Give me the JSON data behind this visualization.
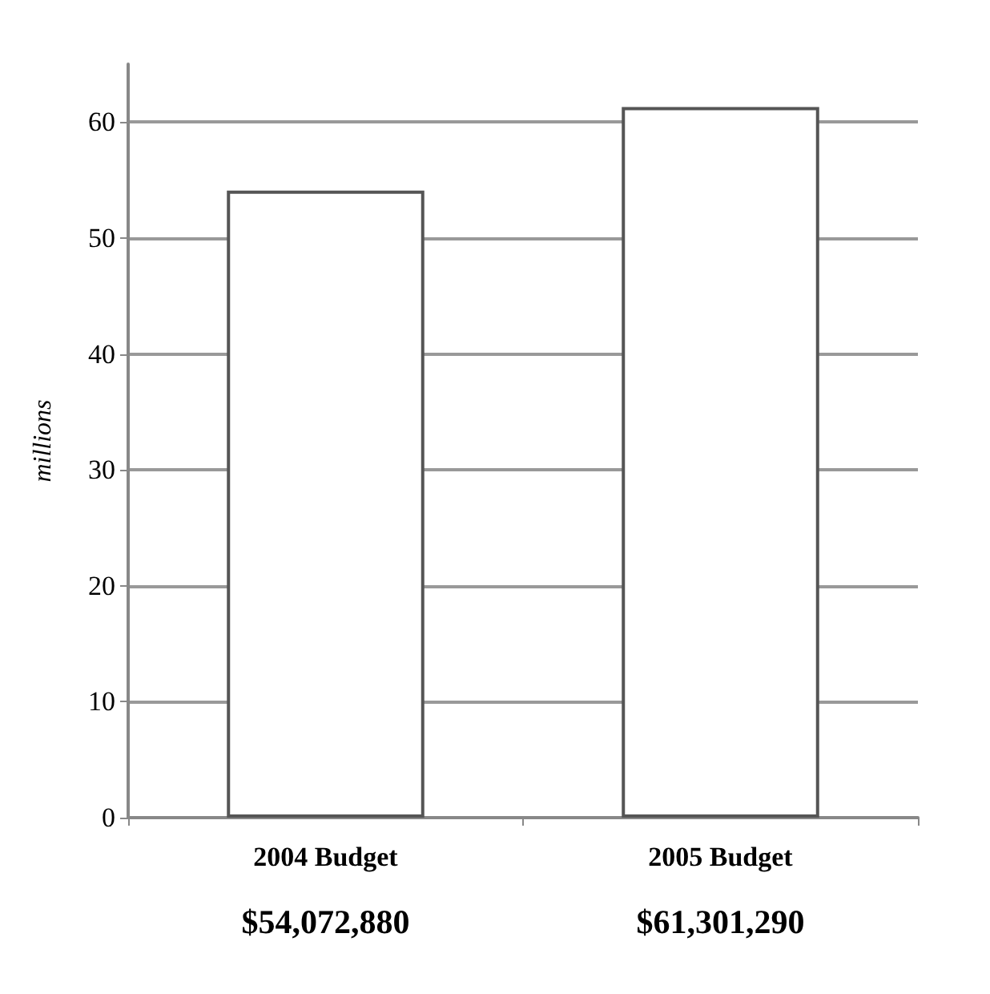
{
  "chart_data": {
    "type": "bar",
    "ylabel": "millions",
    "categories": [
      "2004 Budget",
      "2005 Budget"
    ],
    "values": [
      54.1,
      61.3
    ],
    "color": "#ffffff",
    "annotations": [
      "$54,072,880",
      "$61,301,290"
    ],
    "ylim": [
      0,
      65
    ],
    "yticks": [
      0,
      10,
      20,
      30,
      40,
      50,
      60
    ],
    "grid": "y"
  }
}
